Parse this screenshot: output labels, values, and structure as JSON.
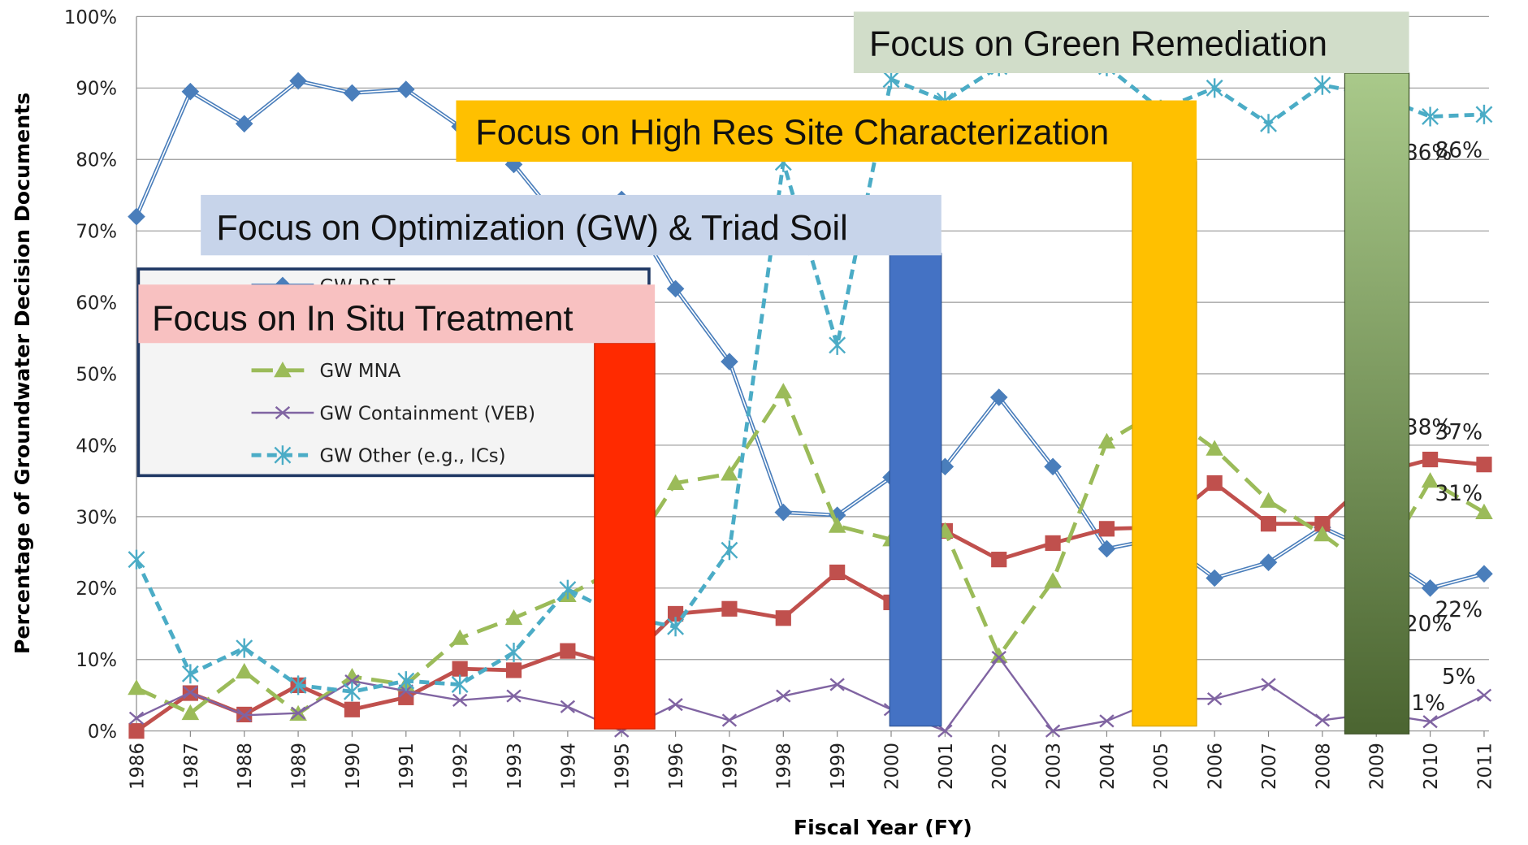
{
  "chart_data": {
    "type": "line",
    "y_label": "Percentage of Groundwater Decision Documents",
    "x_label": "Fiscal Year (FY)",
    "categories": [
      "1986",
      "1987",
      "1988",
      "1989",
      "1990",
      "1991",
      "1992",
      "1993",
      "1994",
      "1995",
      "1996",
      "1997",
      "1998",
      "1999",
      "2000",
      "2001",
      "2002",
      "2003",
      "2004",
      "2005",
      "2006",
      "2007",
      "2008",
      "2009",
      "2010",
      "2011"
    ],
    "ylim": [
      0,
      100
    ],
    "yticks": [
      {
        "value": 0,
        "label": "0%"
      },
      {
        "value": 10,
        "label": "10%"
      },
      {
        "value": 20,
        "label": "20%"
      },
      {
        "value": 30,
        "label": "30%"
      },
      {
        "value": 40,
        "label": "40%"
      },
      {
        "value": 50,
        "label": "50%"
      },
      {
        "value": 60,
        "label": "60%"
      },
      {
        "value": 70,
        "label": "70%"
      },
      {
        "value": 80,
        "label": "80%"
      },
      {
        "value": 90,
        "label": "90%"
      },
      {
        "value": 100,
        "label": "100%"
      }
    ],
    "grid": true,
    "series": [
      {
        "name": "GW P&T",
        "color": "#4a7ebb",
        "marker": "diamond",
        "values": [
          72,
          89.5,
          85,
          91,
          89.3,
          89.8,
          84.6,
          79.3,
          70,
          74.4,
          61.9,
          51.7,
          30.6,
          30.2,
          35.5,
          37,
          46.7,
          37,
          25.5,
          27,
          21.4,
          23.6,
          28.5,
          25,
          20,
          22
        ],
        "value_labels": [
          null,
          null,
          null,
          null,
          null,
          null,
          null,
          null,
          null,
          null,
          null,
          null,
          null,
          null,
          null,
          null,
          null,
          null,
          null,
          null,
          null,
          null,
          null,
          null,
          "20%",
          "22%"
        ]
      },
      {
        "color": "#c0504d",
        "marker": "square",
        "values": [
          0,
          5.3,
          2.3,
          6.4,
          3,
          4.7,
          8.7,
          8.5,
          11.2,
          9,
          16.4,
          17.1,
          15.8,
          22.2,
          18,
          28,
          24,
          26.3,
          28.3,
          28.5,
          34.7,
          29,
          29,
          36,
          38,
          37.3
        ],
        "value_labels": [
          null,
          null,
          null,
          null,
          null,
          null,
          null,
          null,
          null,
          null,
          null,
          null,
          null,
          null,
          null,
          null,
          null,
          null,
          null,
          null,
          null,
          null,
          null,
          null,
          "38%",
          "37%"
        ]
      },
      {
        "name": "GW MNA",
        "color": "#9bbb59",
        "marker": "triangle",
        "values": [
          6,
          2.5,
          8.3,
          2.4,
          7.6,
          6.5,
          13,
          15.8,
          19,
          23,
          34.7,
          36,
          47.5,
          28.7,
          26.8,
          28,
          10.5,
          21,
          40.5,
          45,
          39.5,
          32.2,
          27.5,
          22,
          35,
          30.6
        ],
        "value_labels": [
          null,
          null,
          null,
          null,
          null,
          null,
          null,
          null,
          null,
          null,
          null,
          null,
          null,
          null,
          null,
          null,
          null,
          null,
          null,
          null,
          null,
          null,
          null,
          null,
          null,
          "31%"
        ]
      },
      {
        "name": "GW Containment (VEB)",
        "color": "#8064a2",
        "marker": "x",
        "values": [
          1.8,
          5.4,
          2.2,
          2.5,
          7,
          5.6,
          4.3,
          4.9,
          3.4,
          0,
          3.7,
          1.5,
          4.9,
          6.5,
          3,
          0,
          10.3,
          0,
          1.4,
          4.5,
          4.5,
          6.5,
          1.5,
          2.5,
          1.3,
          5
        ],
        "value_labels": [
          null,
          null,
          null,
          null,
          null,
          null,
          null,
          null,
          null,
          null,
          null,
          null,
          null,
          null,
          null,
          null,
          null,
          null,
          null,
          null,
          null,
          null,
          null,
          null,
          "1%",
          "5%"
        ]
      },
      {
        "name": "GW Other (e.g., ICs)",
        "color": "#4bacc6",
        "marker": "star",
        "values": [
          24,
          8,
          11.6,
          6.4,
          5.5,
          7,
          6.5,
          11,
          19.8,
          16,
          14.6,
          25.3,
          79.6,
          54,
          91.2,
          88.2,
          93,
          95,
          93,
          87,
          90,
          85,
          90.4,
          89,
          86,
          86.3
        ],
        "value_labels": [
          null,
          null,
          null,
          null,
          null,
          null,
          null,
          null,
          null,
          null,
          null,
          null,
          null,
          null,
          null,
          null,
          null,
          null,
          null,
          null,
          null,
          null,
          null,
          null,
          "86%",
          "86%"
        ]
      }
    ],
    "annotations": [
      "Focus on Green Remediation",
      "Focus on High Res Site Characterization",
      "Focus on Optimization (GW) & Triad Soil",
      "Focus on In Situ Treatment"
    ]
  }
}
